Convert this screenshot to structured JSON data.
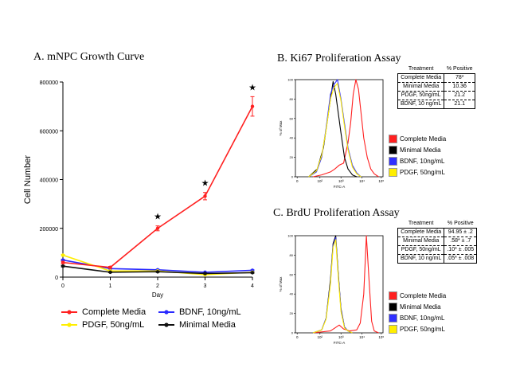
{
  "panel_a": {
    "title": "A. mNPC Growth Curve"
  },
  "panel_b": {
    "title": "B. Ki67 Proliferation Assay",
    "table": {
      "headers": [
        "Treatment",
        "% Positive"
      ],
      "rows": [
        [
          "Complete Media",
          "78*"
        ],
        [
          "Minimal Media",
          "10.36"
        ],
        [
          "PDGF, 50ng/mL",
          "21.2"
        ],
        [
          "BDNF, 10 ng/mL",
          "21.1"
        ]
      ]
    }
  },
  "panel_c": {
    "title": "C. BrdU Proliferation Assay",
    "table": {
      "headers": [
        "Treatment",
        "% Positive"
      ],
      "rows": [
        [
          "Complete Media",
          "94.95 ± .2"
        ],
        [
          "Minimal Media",
          ".58* ± .7"
        ],
        [
          "PDGF, 50ng/mL",
          ".10* ± .005"
        ],
        [
          "BDNF, 10 ng/mL",
          ".05* ± .008"
        ]
      ]
    }
  },
  "chart_data": [
    {
      "type": "line",
      "title": "A. mNPC Growth Curve",
      "xlabel": "Day",
      "ylabel": "Cell Number",
      "x": [
        0,
        1,
        2,
        3,
        4
      ],
      "xticks": [
        "0",
        "1",
        "2",
        "3",
        "4"
      ],
      "yticks": [
        "0",
        "200000",
        "400000",
        "600000",
        "800000"
      ],
      "xlim": [
        0,
        4
      ],
      "ylim": [
        0,
        800000
      ],
      "grid": false,
      "legend_position": "bottom",
      "series": [
        {
          "name": "Complete Media",
          "color": "#ff2020",
          "values": [
            60000,
            40000,
            200000,
            332000,
            700000
          ],
          "errors": [
            5000,
            4000,
            10000,
            15000,
            40000
          ]
        },
        {
          "name": "BDNF, 10ng/mL",
          "color": "#2a2aff",
          "values": [
            70000,
            35000,
            30000,
            20000,
            28000
          ],
          "errors": [
            3000,
            2000,
            2000,
            2000,
            2000
          ]
        },
        {
          "name": "PDGF, 50ng/mL",
          "color": "#ffee00",
          "values": [
            90000,
            25000,
            25000,
            10000,
            20000
          ],
          "errors": [
            3000,
            2000,
            2000,
            2000,
            2000
          ]
        },
        {
          "name": "Minimal Media",
          "color": "#111111",
          "values": [
            45000,
            20000,
            22000,
            15000,
            18000
          ],
          "errors": [
            3000,
            2000,
            2000,
            2000,
            2000
          ]
        }
      ],
      "annotations": [
        {
          "x": 2,
          "text": "★"
        },
        {
          "x": 3,
          "text": "★"
        },
        {
          "x": 4,
          "text": "★"
        }
      ],
      "legend_order": [
        [
          "Complete Media",
          "BDNF, 10ng/mL"
        ],
        [
          "PDGF, 50ng/mL",
          "Minimal Media"
        ]
      ]
    },
    {
      "type": "area",
      "panel": "Ki67",
      "xlabel": "FITC-A",
      "ylabel": "% of Max",
      "ylim": [
        0,
        100
      ],
      "yticks": [
        "0",
        "20",
        "40",
        "60",
        "80",
        "100"
      ],
      "xticks": [
        "0",
        "10²",
        "10³",
        "10⁴",
        "10⁵"
      ],
      "legend": [
        {
          "name": "Complete Media",
          "color": "#ff2020"
        },
        {
          "name": "Minimal Media",
          "color": "#000000"
        },
        {
          "name": "BDNF, 10ng/mL",
          "color": "#3030ff"
        },
        {
          "name": "PDGF, 50ng/mL",
          "color": "#ffee00"
        }
      ],
      "series": [
        {
          "name": "Complete Media",
          "color": "#ff2020",
          "x": [
            0.2,
            0.3,
            0.4,
            0.45,
            0.5,
            0.55,
            0.6,
            0.63,
            0.66,
            0.69,
            0.72,
            0.75,
            0.78,
            0.82,
            0.86,
            0.9,
            0.95
          ],
          "y": [
            0,
            2,
            5,
            8,
            12,
            14,
            35,
            55,
            85,
            100,
            90,
            65,
            40,
            20,
            8,
            3,
            0
          ]
        },
        {
          "name": "Minimal Media",
          "color": "#000000",
          "x": [
            0.15,
            0.25,
            0.32,
            0.36,
            0.4,
            0.43,
            0.46,
            0.49,
            0.52,
            0.56,
            0.6,
            0.65,
            0.7
          ],
          "y": [
            0,
            8,
            30,
            55,
            80,
            98,
            85,
            65,
            45,
            20,
            8,
            2,
            0
          ]
        },
        {
          "name": "BDNF, 10ng/mL",
          "color": "#3030ff",
          "x": [
            0.15,
            0.24,
            0.3,
            0.35,
            0.4,
            0.44,
            0.48,
            0.52,
            0.56,
            0.6,
            0.65,
            0.7,
            0.75
          ],
          "y": [
            0,
            5,
            20,
            50,
            85,
            95,
            100,
            80,
            55,
            30,
            12,
            4,
            0
          ]
        },
        {
          "name": "PDGF, 50ng/mL",
          "color": "#ffee00",
          "x": [
            0.15,
            0.24,
            0.3,
            0.35,
            0.4,
            0.44,
            0.48,
            0.52,
            0.56,
            0.6,
            0.65,
            0.7,
            0.75
          ],
          "y": [
            0,
            6,
            22,
            48,
            80,
            92,
            96,
            78,
            52,
            28,
            10,
            3,
            0
          ]
        }
      ]
    },
    {
      "type": "area",
      "panel": "BrdU",
      "xlabel": "FITC-A",
      "ylabel": "% of Max",
      "ylim": [
        0,
        100
      ],
      "yticks": [
        "0",
        "20",
        "40",
        "60",
        "80",
        "100"
      ],
      "xticks": [
        "0",
        "10²",
        "10³",
        "10⁴",
        "10⁵"
      ],
      "legend": [
        {
          "name": "Complete Media",
          "color": "#ff2020"
        },
        {
          "name": "Minimal Media",
          "color": "#000000"
        },
        {
          "name": "BDNF, 10ng/mL",
          "color": "#3030ff"
        },
        {
          "name": "PDGF, 50ng/mL",
          "color": "#ffee00"
        }
      ],
      "series": [
        {
          "name": "Complete Media",
          "color": "#ff2020",
          "x": [
            0.2,
            0.4,
            0.45,
            0.5,
            0.55,
            0.62,
            0.7,
            0.74,
            0.78,
            0.81,
            0.84,
            0.87,
            0.9,
            0.95
          ],
          "y": [
            0,
            2,
            5,
            8,
            4,
            2,
            3,
            10,
            40,
            100,
            55,
            12,
            2,
            0
          ]
        },
        {
          "name": "Minimal Media",
          "color": "#000000",
          "x": [
            0.2,
            0.3,
            0.35,
            0.4,
            0.43,
            0.46,
            0.49,
            0.52,
            0.56,
            0.6,
            0.65
          ],
          "y": [
            0,
            3,
            15,
            55,
            92,
            100,
            60,
            25,
            6,
            2,
            0
          ]
        },
        {
          "name": "BDNF, 10ng/mL",
          "color": "#3030ff",
          "x": [
            0.2,
            0.3,
            0.35,
            0.4,
            0.43,
            0.46,
            0.49,
            0.52,
            0.56,
            0.6,
            0.65
          ],
          "y": [
            0,
            3,
            15,
            52,
            90,
            98,
            58,
            24,
            6,
            2,
            0
          ]
        },
        {
          "name": "PDGF, 50ng/mL",
          "color": "#ffee00",
          "x": [
            0.2,
            0.3,
            0.35,
            0.4,
            0.43,
            0.46,
            0.49,
            0.52,
            0.56,
            0.6,
            0.65
          ],
          "y": [
            0,
            3,
            14,
            50,
            88,
            96,
            56,
            22,
            5,
            2,
            0
          ]
        }
      ]
    }
  ]
}
